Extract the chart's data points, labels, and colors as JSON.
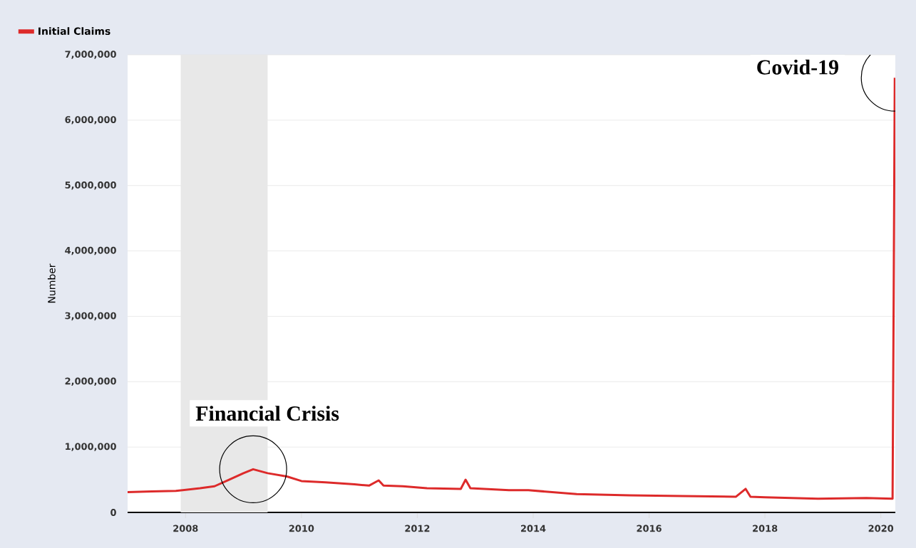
{
  "chart_data": {
    "type": "line",
    "ylabel": "Number",
    "x": [
      "2007-01",
      "2007-06",
      "2007-11",
      "2008-04",
      "2008-07",
      "2008-10",
      "2009-01",
      "2009-03",
      "2009-06",
      "2009-10",
      "2010-01",
      "2010-06",
      "2010-12",
      "2011-03",
      "2011-05",
      "2011-06",
      "2011-10",
      "2012-03",
      "2012-10",
      "2012-11",
      "2012-12",
      "2013-08",
      "2013-12",
      "2014-10",
      "2015-09",
      "2016-08",
      "2017-07",
      "2017-09",
      "2017-10",
      "2018-01",
      "2018-12",
      "2019-10",
      "2020-03-14",
      "2020-03-21",
      "2020-03-28"
    ],
    "series": [
      {
        "name": "Initial Claims",
        "color": "#dd2a2a",
        "values": [
          310000,
          320000,
          330000,
          370000,
          400000,
          500000,
          600000,
          660000,
          600000,
          550000,
          480000,
          460000,
          430000,
          410000,
          490000,
          410000,
          400000,
          370000,
          360000,
          500000,
          370000,
          340000,
          340000,
          280000,
          260000,
          250000,
          240000,
          360000,
          240000,
          230000,
          210000,
          220000,
          210000,
          3300000,
          6650000
        ]
      }
    ],
    "xlim": [
      "2007-01",
      "2020-04"
    ],
    "xticks": [
      "2008",
      "2010",
      "2012",
      "2014",
      "2016",
      "2018",
      "2020"
    ],
    "ylim": [
      0,
      7000000
    ],
    "yticks": [
      0,
      {
        "value": 1000000,
        "label": "1,000,000"
      },
      {
        "value": 2000000,
        "label": "2,000,000"
      },
      {
        "value": 3000000,
        "label": "3,000,000"
      },
      {
        "value": 4000000,
        "label": "4,000,000"
      },
      {
        "value": 5000000,
        "label": "5,000,000"
      },
      {
        "value": 6000000,
        "label": "6,000,000"
      },
      {
        "value": 7000000,
        "label": "7,000,000"
      }
    ],
    "bands": [
      {
        "axis": "x",
        "from": "2007-12",
        "to": "2009-06",
        "color": "#e8e8e8"
      }
    ],
    "annotations": [
      {
        "text": "Financial Crisis",
        "x": "2009-03",
        "y": 660000
      },
      {
        "text": "Covid-19",
        "x": "2020-03-28",
        "y": 6650000
      }
    ],
    "grid": "y",
    "legend": "top left",
    "marker": "none",
    "line_style": "solid"
  }
}
